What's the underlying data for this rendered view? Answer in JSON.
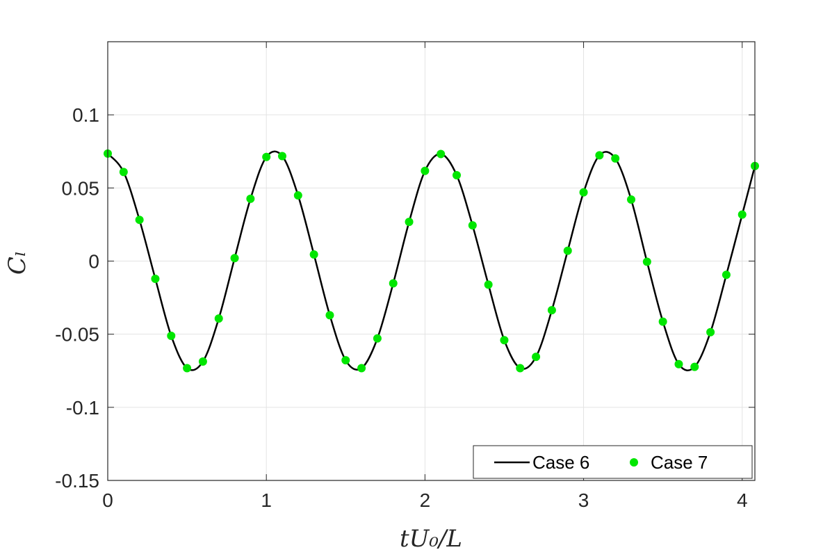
{
  "chart_data": {
    "type": "line",
    "title": "",
    "xlabel": "tU₀/L",
    "ylabel": "Cₗ",
    "xlim": [
      0,
      4.08
    ],
    "ylim": [
      -0.15,
      0.15
    ],
    "xticks": [
      "0",
      "1",
      "2",
      "3",
      "4"
    ],
    "xtick_values": [
      0,
      1,
      2,
      3,
      4
    ],
    "yticks": [
      "-0.15",
      "-0.1",
      "-0.05",
      "0",
      "0.05",
      "0.1"
    ],
    "ytick_values": [
      -0.15,
      -0.1,
      -0.05,
      0,
      0.05,
      0.1
    ],
    "grid": true,
    "legend_position": "bottom-right",
    "series": [
      {
        "name": "Case 6",
        "style": "line",
        "color": "#000000",
        "x": [
          0,
          0.1,
          0.2,
          0.3,
          0.4,
          0.5,
          0.6,
          0.7,
          0.8,
          0.9,
          1.0,
          1.1,
          1.2,
          1.3,
          1.4,
          1.5,
          1.6,
          1.7,
          1.8,
          1.9,
          2.0,
          2.1,
          2.2,
          2.3,
          2.4,
          2.5,
          2.6,
          2.7,
          2.8,
          2.9,
          3.0,
          3.1,
          3.2,
          3.3,
          3.4,
          3.5,
          3.6,
          3.7,
          3.8,
          3.9,
          4.0,
          4.08
        ],
        "y": [
          0.0735,
          0.0609,
          0.0282,
          -0.0121,
          -0.0511,
          -0.0732,
          -0.0687,
          -0.0393,
          0.002,
          0.0426,
          0.0712,
          0.0718,
          0.0449,
          0.0045,
          -0.037,
          -0.0678,
          -0.0732,
          -0.0529,
          -0.0152,
          0.0268,
          0.0617,
          0.0732,
          0.0587,
          0.0244,
          -0.0161,
          -0.0541,
          -0.0732,
          -0.0655,
          -0.0336,
          0.0071,
          0.047,
          0.0723,
          0.0702,
          0.0421,
          -0.0005,
          -0.0414,
          -0.0705,
          -0.0723,
          -0.0486,
          -0.0094,
          0.0318,
          0.065
        ]
      },
      {
        "name": "Case 7",
        "style": "markers",
        "color": "#00e600",
        "x": [
          0,
          0.1,
          0.2,
          0.3,
          0.4,
          0.5,
          0.6,
          0.7,
          0.8,
          0.9,
          1.0,
          1.1,
          1.2,
          1.3,
          1.4,
          1.5,
          1.6,
          1.7,
          1.8,
          1.9,
          2.0,
          2.1,
          2.2,
          2.3,
          2.4,
          2.5,
          2.6,
          2.7,
          2.8,
          2.9,
          3.0,
          3.1,
          3.2,
          3.3,
          3.4,
          3.5,
          3.6,
          3.7,
          3.8,
          3.9,
          4.0,
          4.08
        ],
        "y": [
          0.0735,
          0.0609,
          0.0282,
          -0.0121,
          -0.0511,
          -0.0732,
          -0.0687,
          -0.0393,
          0.002,
          0.0426,
          0.0712,
          0.0718,
          0.0449,
          0.0045,
          -0.037,
          -0.0678,
          -0.0732,
          -0.0529,
          -0.0152,
          0.0268,
          0.0617,
          0.0732,
          0.0587,
          0.0244,
          -0.0161,
          -0.0541,
          -0.0732,
          -0.0655,
          -0.0336,
          0.0071,
          0.047,
          0.0723,
          0.0702,
          0.0421,
          -0.0005,
          -0.0414,
          -0.0705,
          -0.0723,
          -0.0486,
          -0.0094,
          0.0318,
          0.065
        ]
      }
    ]
  }
}
